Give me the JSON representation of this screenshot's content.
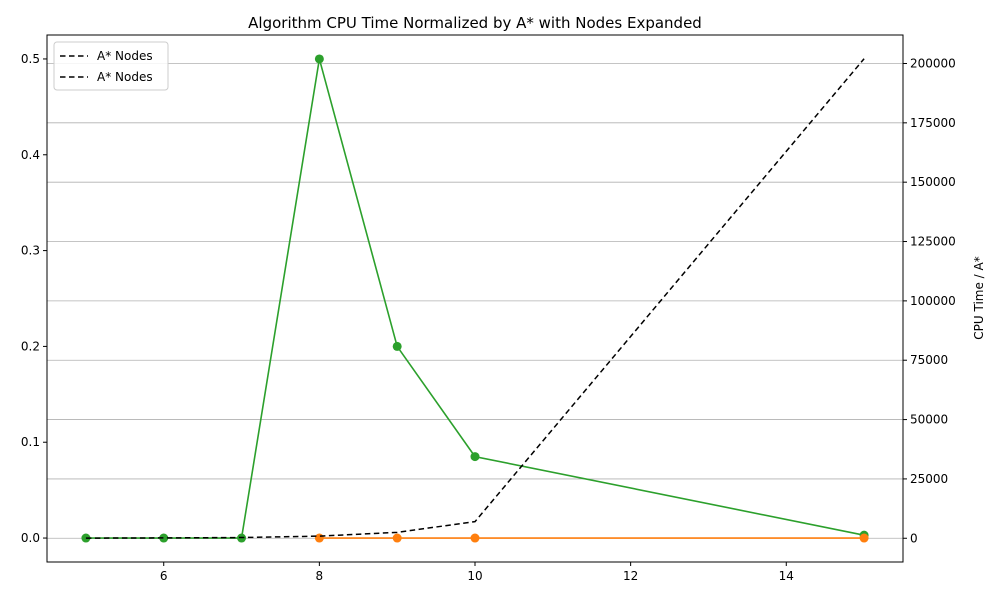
{
  "chart_data": {
    "type": "line",
    "title": "Algorithm CPU Time Normalized by A* with Nodes Expanded",
    "xlabel": "",
    "ylabel_left": "",
    "ylabel_right": "CPU Time / A*",
    "xlim": [
      4.5,
      15.5
    ],
    "ylim_left": [
      -0.025,
      0.525
    ],
    "ylim_right": [
      -10000,
      212000
    ],
    "x_ticks": [
      6,
      8,
      10,
      12,
      14
    ],
    "y_ticks_left": [
      0.0,
      0.1,
      0.2,
      0.3,
      0.4,
      0.5
    ],
    "y_ticks_right": [
      0,
      25000,
      50000,
      75000,
      100000,
      125000,
      150000,
      175000,
      200000
    ],
    "grid": "horizontal lines on right axis",
    "legend_position": "upper left",
    "legend": [
      "A* Nodes",
      "A* Nodes"
    ],
    "series": [
      {
        "name": "",
        "axis": "left",
        "color": "#2ca02c",
        "marker": "circle",
        "x": [
          5,
          6,
          7,
          8,
          9,
          10,
          15
        ],
        "values": [
          0.0,
          0.0,
          0.0,
          0.5,
          0.2,
          0.085,
          0.003
        ]
      },
      {
        "name": "",
        "axis": "left",
        "color": "#ff7f0e",
        "marker": "circle",
        "x": [
          8,
          9,
          10,
          15
        ],
        "values": [
          0.0,
          0.0,
          0.0,
          0.0
        ]
      },
      {
        "name": "A* Nodes",
        "axis": "right",
        "color": "#000000",
        "style": "dashed",
        "x": [
          5,
          6,
          7,
          8,
          9,
          10,
          15
        ],
        "values": [
          60,
          150,
          300,
          900,
          2500,
          7000,
          202000
        ]
      }
    ]
  }
}
